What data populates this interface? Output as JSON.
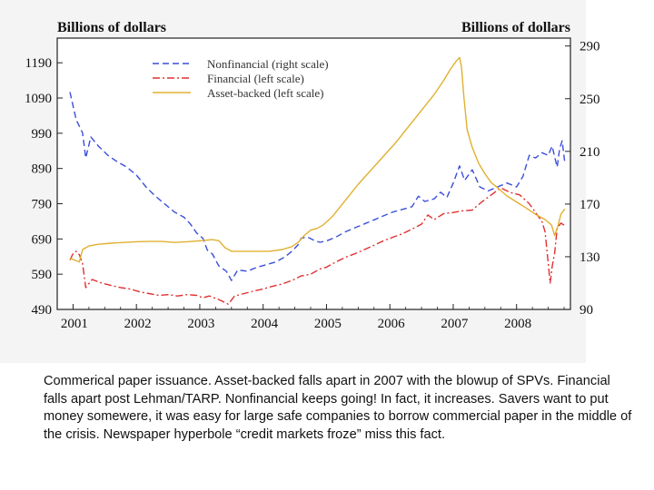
{
  "chart_data": {
    "type": "line",
    "left_axis_title": "Billions of dollars",
    "right_axis_title": "Billions of dollars",
    "left_axis": {
      "range": [
        490,
        1260
      ],
      "ticks": [
        490,
        590,
        690,
        790,
        890,
        990,
        1090,
        1190
      ]
    },
    "right_axis": {
      "range": [
        90,
        296
      ],
      "ticks": [
        90,
        130,
        170,
        210,
        250,
        290
      ]
    },
    "x_axis": {
      "range": [
        2000.75,
        2008.85
      ],
      "ticks": [
        "2001",
        "2002",
        "2003",
        "2004",
        "2005",
        "2006",
        "2007",
        "2008"
      ]
    },
    "grid": false,
    "legend_position": "top-left",
    "series": [
      {
        "name": "Nonfinancial (right scale)",
        "axis": "right",
        "color": "#3a4fd8",
        "dash": "dashed",
        "points": [
          [
            2000.95,
            255
          ],
          [
            2001.05,
            234
          ],
          [
            2001.15,
            224
          ],
          [
            2001.2,
            205
          ],
          [
            2001.28,
            221
          ],
          [
            2001.4,
            214
          ],
          [
            2001.55,
            207
          ],
          [
            2001.7,
            202
          ],
          [
            2001.85,
            198
          ],
          [
            2002.0,
            192
          ],
          [
            2002.15,
            183
          ],
          [
            2002.3,
            176
          ],
          [
            2002.45,
            170
          ],
          [
            2002.6,
            164
          ],
          [
            2002.75,
            160
          ],
          [
            2002.85,
            155
          ],
          [
            2002.95,
            148
          ],
          [
            2003.05,
            144
          ],
          [
            2003.12,
            135
          ],
          [
            2003.2,
            132
          ],
          [
            2003.3,
            123
          ],
          [
            2003.42,
            119
          ],
          [
            2003.5,
            112
          ],
          [
            2003.6,
            120
          ],
          [
            2003.75,
            119
          ],
          [
            2003.9,
            122
          ],
          [
            2004.05,
            124
          ],
          [
            2004.2,
            126
          ],
          [
            2004.35,
            130
          ],
          [
            2004.45,
            134
          ],
          [
            2004.55,
            139
          ],
          [
            2004.6,
            144
          ],
          [
            2004.7,
            145
          ],
          [
            2004.82,
            142
          ],
          [
            2004.9,
            141
          ],
          [
            2005.0,
            142
          ],
          [
            2005.15,
            145
          ],
          [
            2005.3,
            149
          ],
          [
            2005.45,
            152
          ],
          [
            2005.6,
            155
          ],
          [
            2005.75,
            158
          ],
          [
            2005.9,
            161
          ],
          [
            2006.05,
            164
          ],
          [
            2006.2,
            166
          ],
          [
            2006.35,
            168
          ],
          [
            2006.45,
            176
          ],
          [
            2006.55,
            172
          ],
          [
            2006.7,
            174
          ],
          [
            2006.8,
            179
          ],
          [
            2006.9,
            175
          ],
          [
            2007.0,
            186
          ],
          [
            2007.1,
            199
          ],
          [
            2007.18,
            188
          ],
          [
            2007.3,
            196
          ],
          [
            2007.42,
            183
          ],
          [
            2007.55,
            180
          ],
          [
            2007.7,
            183
          ],
          [
            2007.85,
            186
          ],
          [
            2008.0,
            183
          ],
          [
            2008.1,
            191
          ],
          [
            2008.2,
            207
          ],
          [
            2008.3,
            205
          ],
          [
            2008.4,
            209
          ],
          [
            2008.5,
            207
          ],
          [
            2008.56,
            214
          ],
          [
            2008.6,
            206
          ],
          [
            2008.64,
            198
          ],
          [
            2008.68,
            212
          ],
          [
            2008.72,
            218
          ],
          [
            2008.76,
            202
          ]
        ]
      },
      {
        "name": "Financial (left scale)",
        "axis": "left",
        "color": "#e03030",
        "dash": "dashdot",
        "points": [
          [
            2000.95,
            630
          ],
          [
            2001.0,
            648
          ],
          [
            2001.05,
            655
          ],
          [
            2001.1,
            645
          ],
          [
            2001.15,
            620
          ],
          [
            2001.2,
            552
          ],
          [
            2001.3,
            575
          ],
          [
            2001.45,
            565
          ],
          [
            2001.6,
            558
          ],
          [
            2001.75,
            552
          ],
          [
            2001.9,
            548
          ],
          [
            2002.05,
            540
          ],
          [
            2002.2,
            535
          ],
          [
            2002.35,
            530
          ],
          [
            2002.5,
            532
          ],
          [
            2002.65,
            528
          ],
          [
            2002.8,
            532
          ],
          [
            2002.95,
            530
          ],
          [
            2003.05,
            523
          ],
          [
            2003.15,
            528
          ],
          [
            2003.3,
            518
          ],
          [
            2003.45,
            505
          ],
          [
            2003.55,
            528
          ],
          [
            2003.7,
            535
          ],
          [
            2003.85,
            542
          ],
          [
            2004.0,
            548
          ],
          [
            2004.15,
            556
          ],
          [
            2004.3,
            562
          ],
          [
            2004.45,
            572
          ],
          [
            2004.6,
            585
          ],
          [
            2004.75,
            590
          ],
          [
            2004.9,
            605
          ],
          [
            2005.0,
            610
          ],
          [
            2005.15,
            625
          ],
          [
            2005.3,
            638
          ],
          [
            2005.45,
            648
          ],
          [
            2005.6,
            660
          ],
          [
            2005.75,
            672
          ],
          [
            2005.9,
            685
          ],
          [
            2006.05,
            695
          ],
          [
            2006.2,
            705
          ],
          [
            2006.35,
            718
          ],
          [
            2006.5,
            732
          ],
          [
            2006.6,
            758
          ],
          [
            2006.7,
            745
          ],
          [
            2006.85,
            762
          ],
          [
            2007.0,
            765
          ],
          [
            2007.15,
            770
          ],
          [
            2007.3,
            772
          ],
          [
            2007.45,
            795
          ],
          [
            2007.6,
            815
          ],
          [
            2007.75,
            835
          ],
          [
            2007.9,
            822
          ],
          [
            2008.05,
            815
          ],
          [
            2008.2,
            790
          ],
          [
            2008.3,
            765
          ],
          [
            2008.4,
            740
          ],
          [
            2008.45,
            710
          ],
          [
            2008.5,
            620
          ],
          [
            2008.53,
            565
          ],
          [
            2008.56,
            610
          ],
          [
            2008.6,
            650
          ],
          [
            2008.64,
            720
          ],
          [
            2008.7,
            735
          ],
          [
            2008.76,
            728
          ]
        ]
      },
      {
        "name": "Asset-backed (left scale)",
        "axis": "left",
        "color": "#e0b030",
        "dash": "solid",
        "points": [
          [
            2000.95,
            635
          ],
          [
            2001.1,
            625
          ],
          [
            2001.15,
            660
          ],
          [
            2001.25,
            670
          ],
          [
            2001.4,
            675
          ],
          [
            2001.6,
            678
          ],
          [
            2001.8,
            680
          ],
          [
            2002.0,
            682
          ],
          [
            2002.2,
            683
          ],
          [
            2002.4,
            683
          ],
          [
            2002.6,
            680
          ],
          [
            2002.8,
            682
          ],
          [
            2003.0,
            685
          ],
          [
            2003.2,
            688
          ],
          [
            2003.3,
            685
          ],
          [
            2003.4,
            665
          ],
          [
            2003.5,
            655
          ],
          [
            2003.7,
            655
          ],
          [
            2003.9,
            655
          ],
          [
            2004.1,
            655
          ],
          [
            2004.3,
            660
          ],
          [
            2004.45,
            668
          ],
          [
            2004.55,
            680
          ],
          [
            2004.65,
            700
          ],
          [
            2004.75,
            715
          ],
          [
            2004.85,
            720
          ],
          [
            2004.95,
            730
          ],
          [
            2005.1,
            755
          ],
          [
            2005.3,
            800
          ],
          [
            2005.5,
            845
          ],
          [
            2005.7,
            885
          ],
          [
            2005.9,
            925
          ],
          [
            2006.1,
            965
          ],
          [
            2006.3,
            1010
          ],
          [
            2006.5,
            1055
          ],
          [
            2006.7,
            1100
          ],
          [
            2006.85,
            1140
          ],
          [
            2006.95,
            1170
          ],
          [
            2007.05,
            1195
          ],
          [
            2007.1,
            1205
          ],
          [
            2007.13,
            1180
          ],
          [
            2007.17,
            1090
          ],
          [
            2007.22,
            1000
          ],
          [
            2007.3,
            950
          ],
          [
            2007.4,
            905
          ],
          [
            2007.5,
            875
          ],
          [
            2007.6,
            850
          ],
          [
            2007.7,
            835
          ],
          [
            2007.85,
            812
          ],
          [
            2008.0,
            795
          ],
          [
            2008.15,
            778
          ],
          [
            2008.3,
            760
          ],
          [
            2008.45,
            745
          ],
          [
            2008.55,
            730
          ],
          [
            2008.6,
            700
          ],
          [
            2008.65,
            725
          ],
          [
            2008.7,
            760
          ],
          [
            2008.76,
            775
          ]
        ]
      }
    ]
  },
  "caption": "Commerical paper issuance. Asset-backed falls apart in 2007 with the blowup of SPVs. Financial falls apart post Lehman/TARP. Nonfinancial keeps going! In fact, it increases. Savers want to put money somewere, it was easy for large safe companies to borrow commercial paper in the middle of the crisis. Newspaper hyperbole “credit markets froze” miss this fact."
}
